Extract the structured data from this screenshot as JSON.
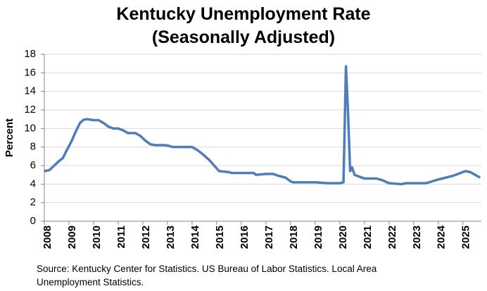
{
  "chart_data": {
    "type": "line",
    "title": "Kentucky Unemployment Rate (Seasonally Adjusted)",
    "y_label": "Percent",
    "source": "Source: Kentucky Center for Statistics. US Bureau of Labor Statistics. Local Area Unemployment Statistics.",
    "x": [
      2008.0,
      2008.2,
      2008.4,
      2008.6,
      2008.75,
      2008.9,
      2009.1,
      2009.3,
      2009.45,
      2009.6,
      2009.75,
      2010.0,
      2010.2,
      2010.4,
      2010.6,
      2010.8,
      2011.0,
      2011.2,
      2011.4,
      2011.7,
      2011.9,
      2012.1,
      2012.3,
      2012.5,
      2012.9,
      2013.1,
      2013.2,
      2013.9,
      2014.0,
      2014.2,
      2014.4,
      2014.7,
      2014.9,
      2015.1,
      2015.5,
      2015.6,
      2016.5,
      2016.6,
      2017.0,
      2017.3,
      2017.5,
      2017.8,
      2018.0,
      2018.1,
      2019.0,
      2019.5,
      2020.0,
      2020.15,
      2020.25,
      2020.33,
      2020.42,
      2020.5,
      2020.6,
      2020.8,
      2021.0,
      2021.5,
      2021.75,
      2022.0,
      2022.5,
      2022.7,
      2023.5,
      2023.75,
      2024.0,
      2024.3,
      2024.6,
      2024.9,
      2025.1,
      2025.3,
      2025.5,
      2025.7
    ],
    "series": [
      {
        "name": "Unemployment rate",
        "color": "#4f7db8",
        "values": [
          5.4,
          5.5,
          6.0,
          6.5,
          6.8,
          7.6,
          8.6,
          9.8,
          10.6,
          10.95,
          11.0,
          10.9,
          10.9,
          10.6,
          10.2,
          10.0,
          10.0,
          9.8,
          9.5,
          9.5,
          9.2,
          8.7,
          8.3,
          8.2,
          8.2,
          8.1,
          8.0,
          8.0,
          8.0,
          7.7,
          7.3,
          6.6,
          6.0,
          5.4,
          5.3,
          5.2,
          5.2,
          5.0,
          5.1,
          5.1,
          4.9,
          4.7,
          4.3,
          4.2,
          4.2,
          4.1,
          4.1,
          4.2,
          16.7,
          12.0,
          5.4,
          5.8,
          5.0,
          4.8,
          4.6,
          4.6,
          4.4,
          4.1,
          4.0,
          4.1,
          4.1,
          4.3,
          4.5,
          4.7,
          4.9,
          5.2,
          5.4,
          5.3,
          5.0,
          4.7
        ]
      }
    ],
    "xlim": [
      2008,
      2025.75
    ],
    "xticks": [
      2008,
      2009,
      2010,
      2011,
      2012,
      2013,
      2014,
      2015,
      2016,
      2017,
      2018,
      2019,
      2020,
      2021,
      2022,
      2023,
      2024,
      2025
    ],
    "ylim": [
      0,
      18
    ],
    "yticks": [
      0,
      2,
      4,
      6,
      8,
      10,
      12,
      14,
      16,
      18
    ],
    "grid": true
  }
}
